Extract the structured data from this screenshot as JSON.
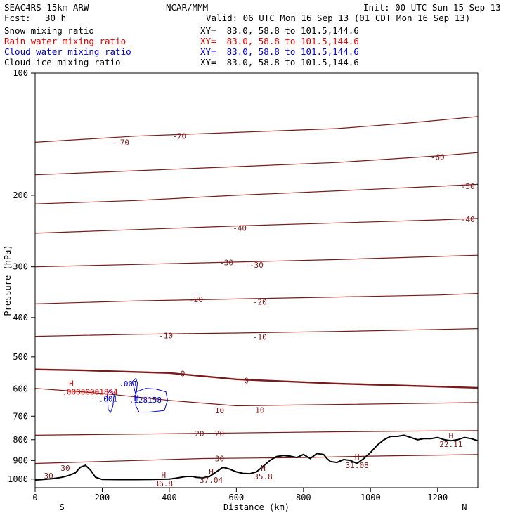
{
  "header": {
    "model": "SEAC4RS 15km ARW",
    "center": "NCAR/MMM",
    "init": "Init: 00 UTC Sun 15 Sep 13",
    "fcst_label": "Fcst:",
    "fcst_value": "30 h",
    "valid": "Valid: 06 UTC Mon 16 Sep 13 (01 CDT Mon 16 Sep 13)"
  },
  "fields": [
    {
      "label": "Snow mixing ratio",
      "xy": "XY=  83.0, 58.8 to 101.5,144.6",
      "color": "#000000"
    },
    {
      "label": "Rain water mixing ratio",
      "xy": "XY=  83.0, 58.8 to 101.5,144.6",
      "color": "#dd0000"
    },
    {
      "label": "Cloud water mixing ratio",
      "xy": "XY=  83.0, 58.8 to 101.5,144.6",
      "color": "#0000cc"
    },
    {
      "label": "Cloud ice mixing ratio",
      "xy": "XY=  83.0, 58.8 to 101.5,144.6",
      "color": "#000000"
    }
  ],
  "colors": {
    "temperature": "#7a1a1a",
    "freezing": "#7a1a1a",
    "terrain": "#000000",
    "rain": "#dd0000",
    "cloud_water": "#0000cc"
  },
  "chart_data": {
    "type": "line",
    "xlabel": "Distance (km)",
    "ylabel": "Pressure (hPa)",
    "xlim": [
      0,
      1320
    ],
    "ylim": [
      1050,
      100
    ],
    "y_scale": "log-pressure",
    "x_ticks": [
      0,
      200,
      400,
      600,
      800,
      1000,
      1200
    ],
    "y_ticks": [
      100,
      200,
      300,
      400,
      500,
      600,
      700,
      800,
      900,
      1000
    ],
    "x_end_labels": {
      "left": "S",
      "right": "N"
    },
    "isotherms": [
      {
        "label": "-70",
        "width": 1.2,
        "x": [
          0,
          300,
          600,
          900,
          1100,
          1320
        ],
        "y": [
          148,
          143,
          140,
          137,
          133,
          128
        ],
        "labels": [
          {
            "x": 260,
            "y": 148,
            "text": "-70"
          },
          {
            "x": 430,
            "y": 143,
            "text": "-70"
          }
        ]
      },
      {
        "label": "-60",
        "width": 1.2,
        "x": [
          0,
          300,
          600,
          900,
          1200,
          1320
        ],
        "y": [
          178,
          174,
          170,
          166,
          160,
          157
        ],
        "labels": [
          {
            "x": 1200,
            "y": 161,
            "text": "-60"
          }
        ]
      },
      {
        "label": "-50",
        "width": 1.2,
        "x": [
          0,
          300,
          600,
          900,
          1200,
          1320
        ],
        "y": [
          210,
          206,
          200,
          195,
          190,
          188
        ],
        "labels": [
          {
            "x": 1290,
            "y": 190,
            "text": "-50"
          }
        ]
      },
      {
        "label": "-40",
        "width": 1.2,
        "x": [
          0,
          300,
          600,
          900,
          1200,
          1320
        ],
        "y": [
          248,
          243,
          238,
          234,
          230,
          228
        ],
        "labels": [
          {
            "x": 610,
            "y": 241,
            "text": "-40"
          },
          {
            "x": 1290,
            "y": 229,
            "text": "-40"
          }
        ]
      },
      {
        "label": "-30",
        "width": 1.2,
        "x": [
          0,
          300,
          600,
          900,
          1200,
          1320
        ],
        "y": [
          300,
          296,
          292,
          288,
          283,
          281
        ],
        "labels": [
          {
            "x": 570,
            "y": 293,
            "text": "-30"
          },
          {
            "x": 660,
            "y": 297,
            "text": "-30"
          }
        ]
      },
      {
        "label": "-20",
        "width": 1.2,
        "x": [
          0,
          300,
          600,
          900,
          1200,
          1320
        ],
        "y": [
          370,
          364,
          360,
          356,
          352,
          349
        ],
        "labels": [
          {
            "x": 480,
            "y": 361,
            "text": "-20"
          },
          {
            "x": 670,
            "y": 366,
            "text": "-20"
          }
        ]
      },
      {
        "label": "-10",
        "width": 1.2,
        "x": [
          0,
          300,
          600,
          900,
          1200,
          1320
        ],
        "y": [
          445,
          440,
          437,
          433,
          428,
          426
        ],
        "labels": [
          {
            "x": 390,
            "y": 443,
            "text": "-10"
          },
          {
            "x": 670,
            "y": 447,
            "text": "-10"
          }
        ]
      },
      {
        "label": "0",
        "width": 2.4,
        "x": [
          0,
          150,
          400,
          600,
          900,
          1200,
          1320
        ],
        "y": [
          537,
          540,
          548,
          568,
          582,
          592,
          596
        ],
        "labels": [
          {
            "x": 440,
            "y": 549,
            "text": "0"
          },
          {
            "x": 630,
            "y": 572,
            "text": "0"
          }
        ]
      },
      {
        "label": "10",
        "width": 1.2,
        "x": [
          0,
          200,
          400,
          600,
          900,
          1200,
          1320
        ],
        "y": [
          598,
          615,
          640,
          660,
          655,
          650,
          648
        ],
        "labels": [
          {
            "x": 550,
            "y": 678,
            "text": "10"
          },
          {
            "x": 670,
            "y": 676,
            "text": "10"
          }
        ]
      },
      {
        "label": "20",
        "width": 1.2,
        "x": [
          0,
          300,
          600,
          900,
          1100,
          1320
        ],
        "y": [
          780,
          775,
          770,
          765,
          762,
          760
        ],
        "labels": [
          {
            "x": 490,
            "y": 773,
            "text": "20"
          },
          {
            "x": 550,
            "y": 773,
            "text": "20"
          }
        ]
      },
      {
        "label": "30",
        "width": 1.2,
        "x": [
          0,
          200,
          500,
          800,
          1000,
          1320
        ],
        "y": [
          915,
          905,
          890,
          885,
          878,
          870
        ],
        "labels": [
          {
            "x": 550,
            "y": 890,
            "text": "30"
          },
          {
            "x": 90,
            "y": 940,
            "text": "30"
          },
          {
            "x": 40,
            "y": 982,
            "text": "30"
          }
        ]
      }
    ],
    "terrain": {
      "x": [
        0,
        20,
        50,
        80,
        100,
        120,
        135,
        150,
        165,
        180,
        200,
        250,
        300,
        350,
        400,
        420,
        450,
        470,
        480,
        500,
        520,
        540,
        560,
        580,
        600,
        620,
        640,
        660,
        680,
        700,
        720,
        740,
        760,
        780,
        800,
        820,
        840,
        860,
        870,
        880,
        900,
        920,
        940,
        960,
        980,
        1000,
        1020,
        1040,
        1060,
        1080,
        1100,
        1120,
        1140,
        1160,
        1180,
        1200,
        1220,
        1240,
        1260,
        1280,
        1300,
        1320
      ],
      "y": [
        1005,
        1003,
        998,
        990,
        980,
        965,
        935,
        925,
        950,
        990,
        1002,
        1003,
        1003,
        1002,
        1000,
        995,
        985,
        985,
        990,
        993,
        985,
        960,
        935,
        945,
        960,
        968,
        970,
        960,
        930,
        900,
        880,
        875,
        878,
        885,
        870,
        890,
        865,
        870,
        890,
        905,
        910,
        895,
        900,
        915,
        890,
        860,
        825,
        800,
        785,
        785,
        780,
        790,
        800,
        795,
        795,
        790,
        800,
        805,
        800,
        790,
        795,
        805
      ]
    },
    "cloud_water": [
      {
        "x": [
          215,
          225,
          235,
          232,
          225,
          218,
          215
        ],
        "y": [
          615,
          605,
          620,
          660,
          685,
          675,
          615
        ],
        "label": ".001",
        "label_x": 190,
        "label_y": 645
      },
      {
        "x": [
          290,
          300,
          305,
          302,
          300,
          296,
          290
        ],
        "y": [
          575,
          565,
          580,
          610,
          620,
          600,
          575
        ],
        "label": ".001",
        "label_x": 250,
        "label_y": 592
      },
      {
        "x": [
          300,
          330,
          360,
          390,
          395,
          385,
          340,
          310,
          300,
          300
        ],
        "y": [
          610,
          598,
          600,
          610,
          640,
          678,
          684,
          684,
          660,
          610
        ],
        "label": ".128158",
        "label_x": 280,
        "label_y": 648
      }
    ],
    "highs_temperature": [
      {
        "x": 1240,
        "y": 820,
        "text": "22.11"
      },
      {
        "x": 960,
        "y": 925,
        "text": "31.08"
      },
      {
        "x": 680,
        "y": 985,
        "text": "35.8"
      },
      {
        "x": 525,
        "y": 1005,
        "text": "37.04"
      },
      {
        "x": 383,
        "y": 1025,
        "text": "36.8"
      }
    ],
    "highs_rain": [
      {
        "x": 185,
        "y": 610,
        "text": ".00000001894"
      }
    ],
    "highs_cloud": [
      {
        "x": 295,
        "y": 640,
        "text": ""
      }
    ],
    "extra_labels": {
      "high_marker": "H"
    }
  }
}
